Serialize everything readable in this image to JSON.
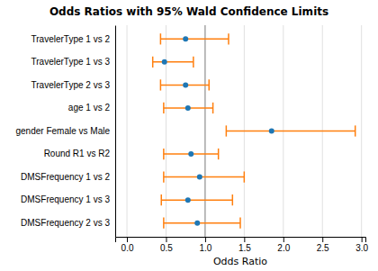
{
  "chart_data": {
    "type": "forest",
    "title": "Odds Ratios with 95% Wald Confidence Limits",
    "xlabel": "Odds Ratio",
    "categories": [
      "TravelerType 1 vs 2",
      "TravelerType 1 vs 3",
      "TravelerType 2 vs 3",
      "age 1 vs 2",
      "gender Female vs Male",
      "Round R1 vs R2",
      "DMSFrequency 1 vs 2",
      "DMSFrequency 1 vs 3",
      "DMSFrequency 2 vs 3"
    ],
    "values": [
      0.75,
      0.48,
      0.75,
      0.78,
      1.85,
      0.82,
      0.93,
      0.78,
      0.9
    ],
    "lower": [
      0.43,
      0.33,
      0.43,
      0.47,
      1.27,
      0.47,
      0.47,
      0.44,
      0.47
    ],
    "upper": [
      1.3,
      0.85,
      1.05,
      1.1,
      2.92,
      1.17,
      1.5,
      1.35,
      1.45
    ],
    "reference_line": 1.0,
    "xlim": [
      -0.15,
      3.05
    ],
    "xticks": [
      {
        "value": 0.0,
        "label": "0.0"
      },
      0.5,
      {
        "value": 1.0,
        "label": "1.0"
      },
      1.5,
      {
        "value": 2.0,
        "label": "2.0"
      },
      2.5,
      {
        "value": 3.0,
        "label": "3.0"
      }
    ],
    "grid": true
  }
}
